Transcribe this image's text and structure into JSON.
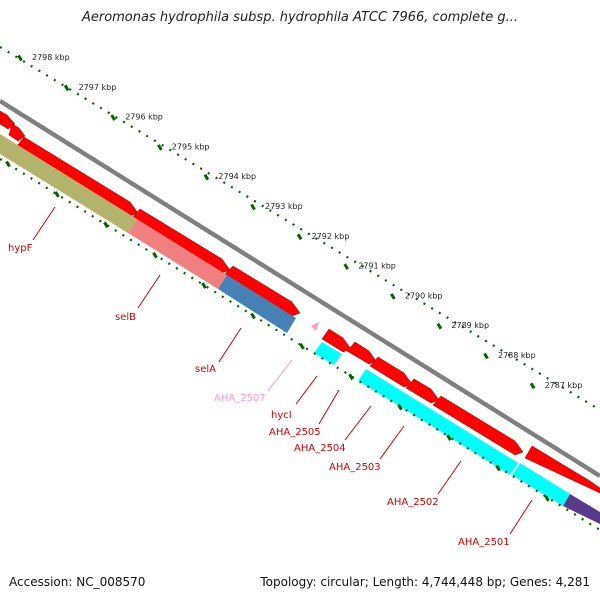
{
  "title": "Aeromonas hydrophila subsp. hydrophila ATCC 7966, complete g...",
  "accession_label": "Accession: NC_008570",
  "summary_label": "Topology: circular; Length: 4,744,448 bp; Genes: 4,281",
  "colors": {
    "backbone": "#808080",
    "forward_cds": "#ff0000",
    "reverse_cds": "#00ffff",
    "ticks": "#006600",
    "label": "#cc0000",
    "label_pseudo": "#ff99cc",
    "hypF": "#b3b36b",
    "selB": "#f08080",
    "selA": "#4682b4",
    "tail_gene": "#5a3a8a"
  },
  "ruler": {
    "ticks": [
      {
        "label": "2798 kbp"
      },
      {
        "label": "2797 kbp"
      },
      {
        "label": "2796 kbp"
      },
      {
        "label": "2795 kbp"
      },
      {
        "label": "2794 kbp"
      },
      {
        "label": "2793 kbp"
      },
      {
        "label": "2792 kbp"
      },
      {
        "label": "2791 kbp"
      },
      {
        "label": "2790 kbp"
      },
      {
        "label": "2789 kbp"
      },
      {
        "label": "2788 kbp"
      },
      {
        "label": "2787 kbp"
      }
    ]
  },
  "gene_labels": [
    {
      "name": "hypF",
      "color": "#cc0000"
    },
    {
      "name": "selB",
      "color": "#cc0000"
    },
    {
      "name": "selA",
      "color": "#cc0000"
    },
    {
      "name": "AHA_2507",
      "color": "#ff99cc"
    },
    {
      "name": "hycI",
      "color": "#cc0000"
    },
    {
      "name": "AHA_2505",
      "color": "#cc0000"
    },
    {
      "name": "AHA_2504",
      "color": "#cc0000"
    },
    {
      "name": "AHA_2503",
      "color": "#cc0000"
    },
    {
      "name": "AHA_2502",
      "color": "#cc0000"
    },
    {
      "name": "AHA_2501",
      "color": "#cc0000"
    }
  ]
}
